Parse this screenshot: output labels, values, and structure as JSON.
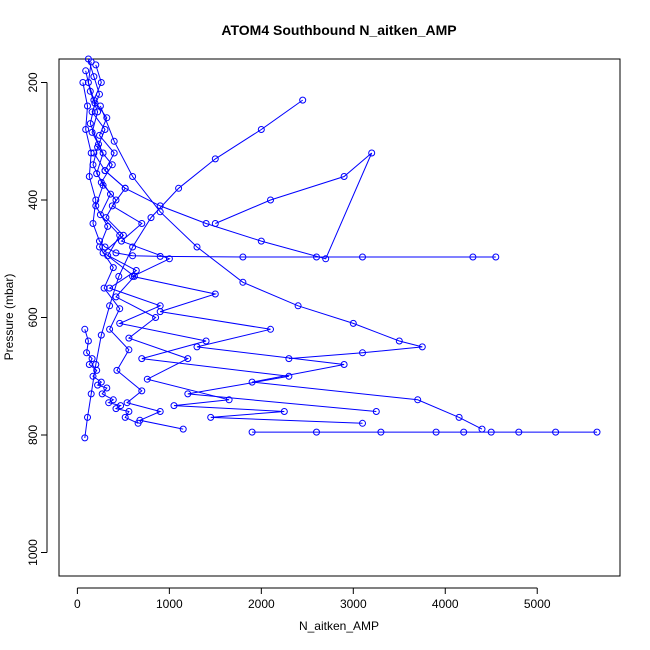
{
  "chart_data": {
    "type": "scatter",
    "title": "ATOM4 Southbound N_aitken_AMP",
    "xlabel": "N_aitken_AMP",
    "ylabel": "Pressure (mbar)",
    "xlim": [
      -200,
      5900
    ],
    "ylim": [
      1040,
      160
    ],
    "y_axis_inverted": true,
    "x_ticks": [
      0,
      1000,
      2000,
      3000,
      4000,
      5000
    ],
    "y_ticks": [
      200,
      400,
      600,
      800,
      1000
    ],
    "grid": false,
    "legend": "none",
    "color": "#0000ff",
    "marker": "open-circle",
    "connected": true,
    "series": [
      {
        "profile": "flight-profile-a",
        "x": [
          120,
          180,
          240,
          160,
          300,
          220,
          380,
          260,
          420,
          310,
          500,
          280,
          640,
          350,
          900,
          460,
          1400,
          700,
          2300,
          1200,
          3250
        ],
        "y": [
          160,
          190,
          220,
          250,
          280,
          310,
          340,
          370,
          400,
          430,
          460,
          490,
          520,
          550,
          580,
          610,
          640,
          670,
          700,
          730,
          760
        ]
      },
      {
        "profile": "flight-profile-b",
        "x": [
          60,
          110,
          90,
          150,
          130,
          200,
          170,
          240,
          300,
          420,
          600,
          900,
          1800,
          2600,
          3100,
          4300,
          4550
        ],
        "y": [
          200,
          240,
          280,
          320,
          360,
          400,
          440,
          470,
          480,
          490,
          495,
          496,
          497,
          497,
          497,
          497,
          497
        ]
      },
      {
        "profile": "flight-profile-c",
        "x": [
          200,
          260,
          180,
          320,
          240,
          400,
          300,
          520,
          380,
          700,
          480,
          1000,
          600,
          1500,
          900,
          2100,
          1300,
          2900,
          1900,
          3700,
          4150,
          4400
        ],
        "y": [
          170,
          200,
          230,
          260,
          290,
          320,
          350,
          380,
          410,
          440,
          470,
          500,
          530,
          560,
          590,
          620,
          650,
          680,
          710,
          740,
          770,
          790
        ]
      },
      {
        "profile": "flight-profile-d",
        "x": [
          90,
          140,
          220,
          160,
          280,
          210,
          360,
          250,
          460,
          330,
          620,
          420,
          850,
          560,
          1200,
          760,
          1650,
          1050,
          2250,
          1450,
          3100
        ],
        "y": [
          180,
          215,
          250,
          285,
          320,
          355,
          390,
          425,
          460,
          495,
          530,
          565,
          600,
          635,
          670,
          705,
          740,
          750,
          760,
          770,
          780
        ]
      },
      {
        "profile": "flight-profile-e",
        "x": [
          150,
          120,
          190,
          140,
          230,
          170,
          280,
          200,
          330,
          240,
          390,
          290,
          460,
          350,
          560,
          430,
          700,
          540,
          900,
          680,
          1150
        ],
        "y": [
          165,
          200,
          235,
          270,
          305,
          340,
          375,
          410,
          445,
          480,
          515,
          550,
          585,
          620,
          655,
          690,
          725,
          745,
          760,
          775,
          790
        ]
      },
      {
        "profile": "flight-profile-f",
        "x": [
          1900,
          2600,
          3300,
          3900,
          4200,
          4500,
          4800,
          5200,
          5650
        ],
        "y": [
          795,
          795,
          795,
          795,
          795,
          795,
          795,
          795,
          795
        ]
      },
      {
        "profile": "flight-profile-g",
        "x": [
          250,
          400,
          600,
          900,
          1300,
          1800,
          2400,
          3000,
          3500,
          3750,
          3100,
          2300
        ],
        "y": [
          240,
          300,
          360,
          420,
          480,
          540,
          580,
          610,
          640,
          650,
          660,
          670
        ]
      },
      {
        "profile": "flight-profile-h",
        "x": [
          80,
          120,
          100,
          160,
          130,
          210,
          170,
          260,
          220,
          320,
          270,
          390,
          340,
          470,
          420,
          560,
          520,
          660
        ],
        "y": [
          620,
          640,
          660,
          670,
          680,
          690,
          700,
          710,
          715,
          720,
          730,
          740,
          745,
          750,
          755,
          760,
          770,
          780
        ]
      },
      {
        "profile": "flight-profile-i",
        "x": [
          2450,
          2000,
          1500,
          1100,
          800,
          600,
          450,
          350,
          260,
          200,
          150,
          110,
          80
        ],
        "y": [
          230,
          280,
          330,
          380,
          430,
          480,
          530,
          580,
          630,
          680,
          730,
          770,
          805
        ]
      },
      {
        "profile": "flight-profile-j",
        "x": [
          180,
          300,
          520,
          900,
          1400,
          2000,
          2700,
          3200,
          2900,
          2100,
          1500
        ],
        "y": [
          320,
          350,
          380,
          410,
          440,
          470,
          500,
          320,
          360,
          400,
          440
        ]
      }
    ]
  }
}
